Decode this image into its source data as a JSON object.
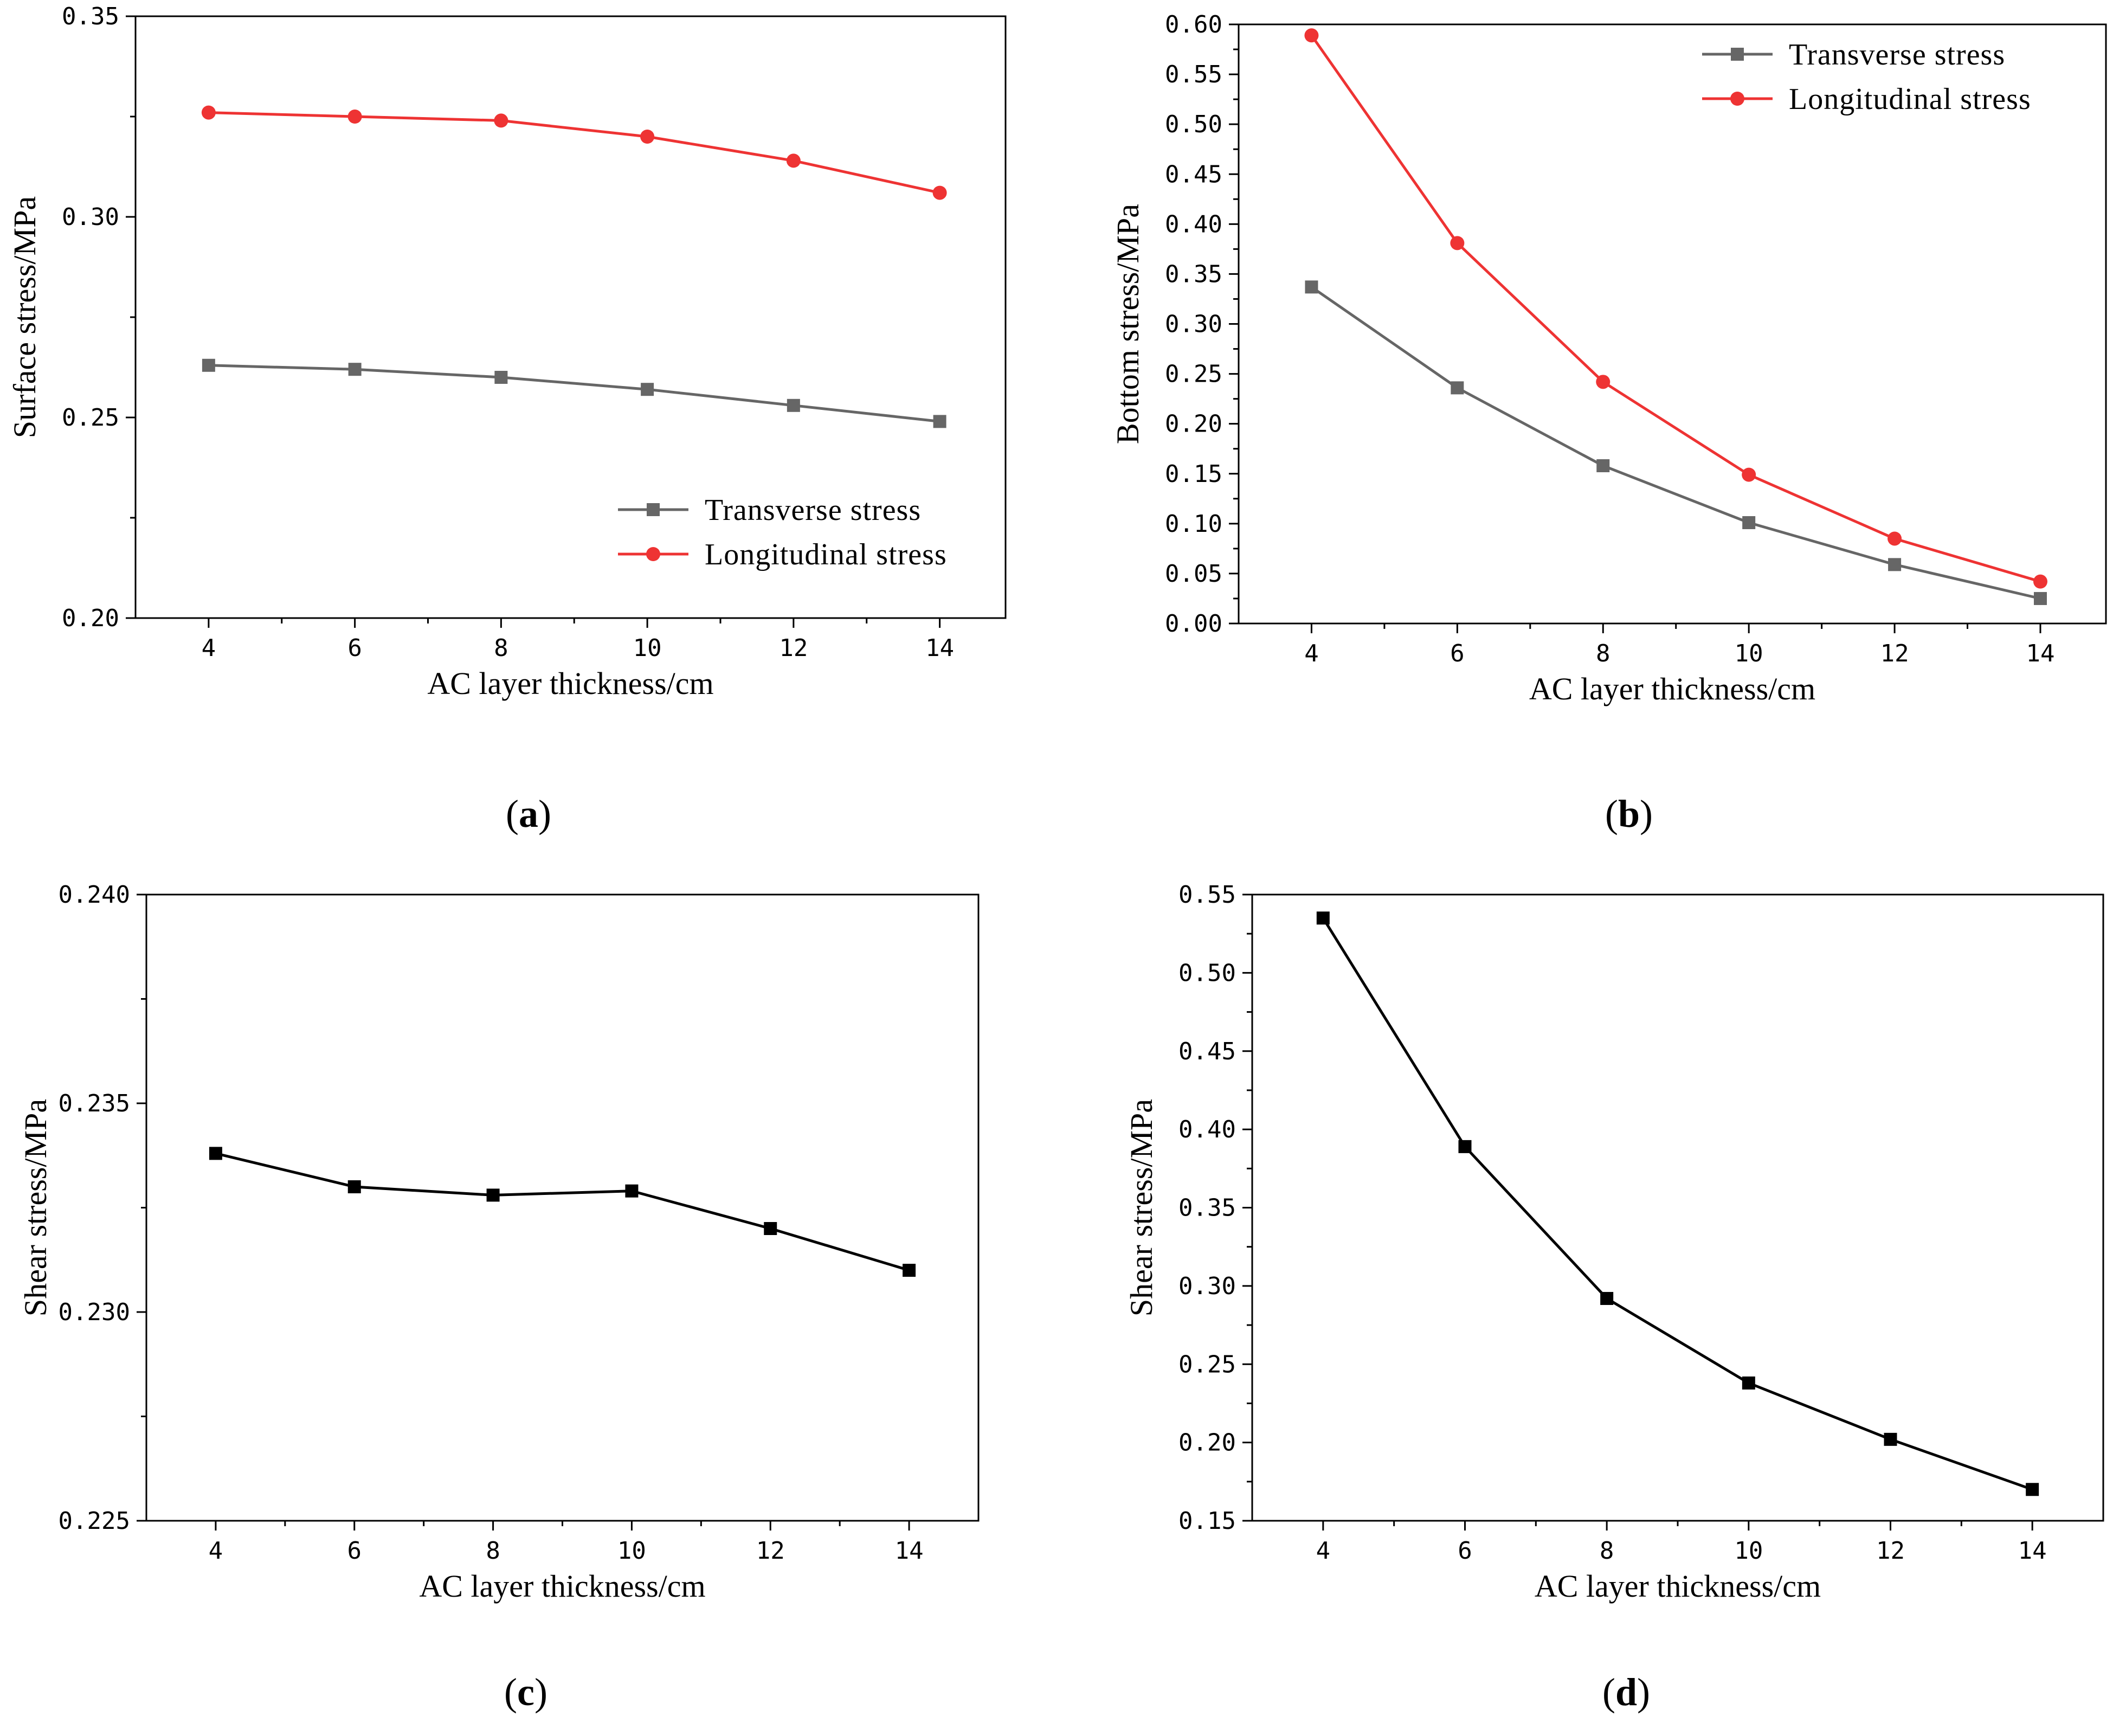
{
  "figure": {
    "captions": [
      "(a)",
      "(b)",
      "(c)",
      "(d)"
    ]
  },
  "chart_data": [
    {
      "id": "a",
      "type": "line",
      "caption_letter": "a",
      "xlabel": "AC layer thickness/cm",
      "ylabel": "Surface stress/MPa",
      "x": [
        4,
        6,
        8,
        10,
        12,
        14
      ],
      "xlim": [
        3,
        14.9
      ],
      "ylim": [
        0.2,
        0.35
      ],
      "y_ticks": [
        0.2,
        0.25,
        0.3,
        0.35
      ],
      "y_tick_labels": [
        "0.20",
        "0.25",
        "0.30",
        "0.35"
      ],
      "x_ticks": [
        4,
        6,
        8,
        10,
        12,
        14
      ],
      "x_tick_labels": [
        "4",
        "6",
        "8",
        "10",
        "12",
        "14"
      ],
      "legend_position": "bottom-right",
      "series": [
        {
          "name": "Transverse stress",
          "color": "#666666",
          "marker": "square",
          "values": [
            0.263,
            0.262,
            0.26,
            0.257,
            0.253,
            0.249
          ]
        },
        {
          "name": "Longitudinal stress",
          "color": "#ee3333",
          "marker": "circle",
          "values": [
            0.326,
            0.325,
            0.324,
            0.32,
            0.314,
            0.306
          ]
        }
      ]
    },
    {
      "id": "b",
      "type": "line",
      "caption_letter": "b",
      "xlabel": "AC layer thickness/cm",
      "ylabel": "Bottom stress/MPa",
      "x": [
        4,
        6,
        8,
        10,
        12,
        14
      ],
      "xlim": [
        3,
        14.9
      ],
      "ylim": [
        0,
        0.6
      ],
      "y_ticks": [
        0,
        0.05,
        0.1,
        0.15,
        0.2,
        0.25,
        0.3,
        0.35,
        0.4,
        0.45,
        0.5,
        0.55,
        0.6
      ],
      "y_tick_labels": [
        "0.00",
        "0.05",
        "0.10",
        "0.15",
        "0.20",
        "0.25",
        "0.30",
        "0.35",
        "0.40",
        "0.45",
        "0.50",
        "0.55",
        "0.60"
      ],
      "x_ticks": [
        4,
        6,
        8,
        10,
        12,
        14
      ],
      "x_tick_labels": [
        "4",
        "6",
        "8",
        "10",
        "12",
        "14"
      ],
      "legend_position": "top-right",
      "series": [
        {
          "name": "Transverse stress",
          "color": "#666666",
          "marker": "square",
          "values": [
            0.337,
            0.236,
            0.158,
            0.101,
            0.059,
            0.025
          ]
        },
        {
          "name": "Longitudinal stress",
          "color": "#ee3333",
          "marker": "circle",
          "values": [
            0.589,
            0.381,
            0.242,
            0.149,
            0.085,
            0.042
          ]
        }
      ]
    },
    {
      "id": "c",
      "type": "line",
      "caption_letter": "c",
      "xlabel": "AC layer thickness/cm",
      "ylabel": "Shear stress/MPa",
      "x": [
        4,
        6,
        8,
        10,
        12,
        14
      ],
      "xlim": [
        3,
        15
      ],
      "ylim": [
        0.225,
        0.24
      ],
      "y_ticks": [
        0.225,
        0.23,
        0.235,
        0.24
      ],
      "y_tick_labels": [
        "0.225",
        "0.230",
        "0.235",
        "0.240"
      ],
      "x_ticks": [
        4,
        6,
        8,
        10,
        12,
        14
      ],
      "x_tick_labels": [
        "4",
        "6",
        "8",
        "10",
        "12",
        "14"
      ],
      "legend_position": "none",
      "series": [
        {
          "name": "Shear stress",
          "color": "#000000",
          "marker": "square",
          "values": [
            0.2338,
            0.233,
            0.2328,
            0.2329,
            0.232,
            0.231
          ]
        }
      ]
    },
    {
      "id": "d",
      "type": "line",
      "caption_letter": "d",
      "xlabel": "AC layer thickness/cm",
      "ylabel": "Shear stress/MPa",
      "x": [
        4,
        6,
        8,
        10,
        12,
        14
      ],
      "xlim": [
        3,
        15
      ],
      "ylim": [
        0.15,
        0.55
      ],
      "y_ticks": [
        0.15,
        0.2,
        0.25,
        0.3,
        0.35,
        0.4,
        0.45,
        0.5,
        0.55
      ],
      "y_tick_labels": [
        "0.15",
        "0.20",
        "0.25",
        "0.30",
        "0.35",
        "0.40",
        "0.45",
        "0.50",
        "0.55"
      ],
      "x_ticks": [
        4,
        6,
        8,
        10,
        12,
        14
      ],
      "x_tick_labels": [
        "4",
        "6",
        "8",
        "10",
        "12",
        "14"
      ],
      "legend_position": "none",
      "series": [
        {
          "name": "Shear stress",
          "color": "#000000",
          "marker": "square",
          "values": [
            0.535,
            0.389,
            0.292,
            0.238,
            0.202,
            0.17
          ]
        }
      ]
    }
  ]
}
